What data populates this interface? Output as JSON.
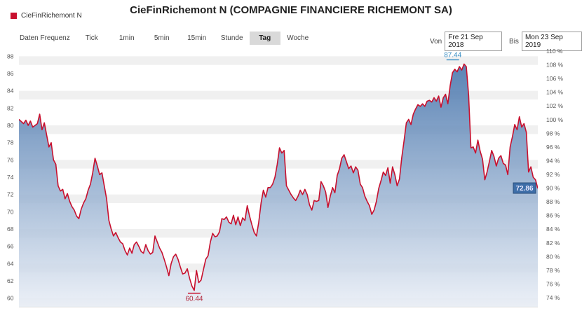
{
  "title": "CieFinRichemont N (COMPAGNIE FINANCIERE RICHEMONT SA)",
  "legend_label": "CieFinRichemont N",
  "toolbar": {
    "label": "Daten Frequenz",
    "tabs": [
      "Tick",
      "1min",
      "5min",
      "15min",
      "Stunde",
      "Tag",
      "Woche"
    ],
    "active": "Tag"
  },
  "range": {
    "from_label": "Von",
    "from_value": "Fre 21 Sep 2018",
    "to_label": "Bis",
    "to_value": "Mon 23 Sep 2019"
  },
  "colors": {
    "line": "#c8102e",
    "fill_top": "#3e6ea8",
    "fill_bottom": "#e9eef6",
    "band": "#f0f0f0"
  },
  "chart_data": {
    "type": "area",
    "ylim": [
      59,
      89
    ],
    "y_ticks": [
      60,
      62,
      64,
      66,
      68,
      70,
      72,
      74,
      76,
      78,
      80,
      82,
      84,
      86,
      88
    ],
    "y2_ticks": [
      "74 %",
      "76 %",
      "78 %",
      "80 %",
      "82 %",
      "84 %",
      "86 %",
      "88 %",
      "90 %",
      "92 %",
      "94 %",
      "96 %",
      "98 %",
      "100 %",
      "102 %",
      "104 %",
      "106 %",
      "108 %",
      "110 %"
    ],
    "x_unit": "trading day index",
    "points": [
      [
        0,
        80.7
      ],
      [
        2,
        80.2
      ],
      [
        3,
        80.6
      ],
      [
        4,
        80
      ],
      [
        5,
        80.5
      ],
      [
        6,
        79.8
      ],
      [
        8,
        80.2
      ],
      [
        9,
        81.3
      ],
      [
        10,
        79.5
      ],
      [
        11,
        80.3
      ],
      [
        13,
        77.5
      ],
      [
        14,
        78
      ],
      [
        15,
        76
      ],
      [
        16,
        75.5
      ],
      [
        17,
        73
      ],
      [
        18,
        72.4
      ],
      [
        19,
        72.6
      ],
      [
        20,
        71.5
      ],
      [
        21,
        72.1
      ],
      [
        22,
        71.2
      ],
      [
        23,
        70.6
      ],
      [
        24,
        70.2
      ],
      [
        25,
        69.5
      ],
      [
        26,
        69.2
      ],
      [
        27,
        70.3
      ],
      [
        28,
        71
      ],
      [
        29,
        71.5
      ],
      [
        30,
        72.5
      ],
      [
        31,
        73.2
      ],
      [
        32,
        74.5
      ],
      [
        33,
        76.2
      ],
      [
        34,
        75.3
      ],
      [
        35,
        74.3
      ],
      [
        36,
        74.5
      ],
      [
        37,
        73
      ],
      [
        38,
        71.5
      ],
      [
        39,
        69
      ],
      [
        40,
        68
      ],
      [
        41,
        67.2
      ],
      [
        42,
        67.6
      ],
      [
        43,
        67
      ],
      [
        44,
        66.5
      ],
      [
        45,
        66.3
      ],
      [
        46,
        65.5
      ],
      [
        47,
        65
      ],
      [
        48,
        65.8
      ],
      [
        49,
        65.2
      ],
      [
        50,
        66.2
      ],
      [
        51,
        66.5
      ],
      [
        52,
        66
      ],
      [
        53,
        65.4
      ],
      [
        54,
        65.2
      ],
      [
        55,
        66.2
      ],
      [
        56,
        65.5
      ],
      [
        57,
        65.1
      ],
      [
        58,
        65.3
      ],
      [
        59,
        67.2
      ],
      [
        60,
        66.5
      ],
      [
        61,
        65.8
      ],
      [
        62,
        65.3
      ],
      [
        63,
        64.5
      ],
      [
        64,
        63.6
      ],
      [
        65,
        62.6
      ],
      [
        66,
        64
      ],
      [
        67,
        64.8
      ],
      [
        68,
        65.1
      ],
      [
        69,
        64.5
      ],
      [
        70,
        63.6
      ],
      [
        71,
        62.8
      ],
      [
        72,
        62.9
      ],
      [
        73,
        63.4
      ],
      [
        74,
        62.3
      ],
      [
        75,
        61.4
      ],
      [
        76,
        60.9
      ],
      [
        77,
        63.2
      ],
      [
        78,
        61.8
      ],
      [
        79,
        62.1
      ],
      [
        80,
        63.3
      ],
      [
        81,
        64.5
      ],
      [
        82,
        64.9
      ],
      [
        83,
        66.5
      ],
      [
        84,
        67.5
      ],
      [
        85,
        67.1
      ],
      [
        86,
        67.2
      ],
      [
        87,
        67.7
      ],
      [
        88,
        69.2
      ],
      [
        89,
        69.1
      ],
      [
        90,
        69.4
      ],
      [
        91,
        68.8
      ],
      [
        92,
        68.6
      ],
      [
        93,
        69.6
      ],
      [
        94,
        68.5
      ],
      [
        95,
        69.4
      ],
      [
        96,
        68.4
      ],
      [
        97,
        69.3
      ],
      [
        98,
        69
      ],
      [
        99,
        70.7
      ],
      [
        100,
        69.5
      ],
      [
        101,
        68.5
      ],
      [
        102,
        67.6
      ],
      [
        103,
        67.2
      ],
      [
        104,
        68.8
      ],
      [
        105,
        71
      ],
      [
        106,
        72.5
      ],
      [
        107,
        71.7
      ],
      [
        108,
        72.8
      ],
      [
        109,
        72.8
      ],
      [
        110,
        73.2
      ],
      [
        111,
        74
      ],
      [
        112,
        75.5
      ],
      [
        113,
        77.4
      ],
      [
        114,
        76.8
      ],
      [
        115,
        77.1
      ],
      [
        116,
        73
      ],
      [
        117,
        72.5
      ],
      [
        118,
        72
      ],
      [
        119,
        71.6
      ],
      [
        120,
        71.3
      ],
      [
        121,
        71.8
      ],
      [
        122,
        72.5
      ],
      [
        123,
        72
      ],
      [
        124,
        72.6
      ],
      [
        125,
        72
      ],
      [
        126,
        70.8
      ],
      [
        127,
        70.2
      ],
      [
        128,
        71.3
      ],
      [
        129,
        71.2
      ],
      [
        130,
        71.3
      ],
      [
        131,
        73.5
      ],
      [
        132,
        73
      ],
      [
        133,
        72.3
      ],
      [
        134,
        70.5
      ],
      [
        135,
        71.8
      ],
      [
        136,
        72.8
      ],
      [
        137,
        72.2
      ],
      [
        138,
        74.2
      ],
      [
        139,
        75
      ],
      [
        140,
        76.2
      ],
      [
        141,
        76.6
      ],
      [
        142,
        75.8
      ],
      [
        143,
        75
      ],
      [
        144,
        75.3
      ],
      [
        145,
        74.5
      ],
      [
        146,
        75.2
      ],
      [
        147,
        74.8
      ],
      [
        148,
        73.2
      ],
      [
        149,
        72.8
      ],
      [
        150,
        71.8
      ],
      [
        151,
        71.2
      ],
      [
        152,
        70.7
      ],
      [
        153,
        69.7
      ],
      [
        154,
        70.2
      ],
      [
        155,
        71.2
      ],
      [
        156,
        72.7
      ],
      [
        157,
        73.6
      ],
      [
        158,
        74.6
      ],
      [
        159,
        74.2
      ],
      [
        160,
        75.1
      ],
      [
        161,
        73.3
      ],
      [
        162,
        75.2
      ],
      [
        163,
        74.3
      ],
      [
        164,
        73
      ],
      [
        165,
        73.8
      ],
      [
        166,
        76.3
      ],
      [
        167,
        78.2
      ],
      [
        168,
        80.3
      ],
      [
        169,
        80.7
      ],
      [
        170,
        80.1
      ],
      [
        171,
        81.3
      ],
      [
        172,
        81.9
      ],
      [
        173,
        82.4
      ],
      [
        174,
        82.2
      ],
      [
        175,
        82.5
      ],
      [
        176,
        82.2
      ],
      [
        177,
        82.8
      ],
      [
        178,
        82.9
      ],
      [
        179,
        82.7
      ],
      [
        180,
        83.2
      ],
      [
        181,
        82.8
      ],
      [
        182,
        83.4
      ],
      [
        183,
        82.1
      ],
      [
        184,
        83.2
      ],
      [
        185,
        83.6
      ],
      [
        186,
        82.5
      ],
      [
        187,
        84.6
      ],
      [
        188,
        86.1
      ],
      [
        189,
        86.5
      ],
      [
        190,
        86.2
      ],
      [
        191,
        86.8
      ],
      [
        192,
        86.4
      ],
      [
        193,
        87.1
      ],
      [
        194,
        86.8
      ],
      [
        195,
        83.5
      ],
      [
        196,
        77.4
      ],
      [
        197,
        77.5
      ],
      [
        198,
        76.8
      ],
      [
        199,
        78.3
      ],
      [
        200,
        77
      ],
      [
        201,
        76.1
      ],
      [
        202,
        73.7
      ],
      [
        203,
        74.6
      ],
      [
        204,
        75.8
      ],
      [
        205,
        77.1
      ],
      [
        206,
        76.4
      ],
      [
        207,
        75.3
      ],
      [
        208,
        76.2
      ],
      [
        209,
        76.5
      ],
      [
        210,
        75.6
      ],
      [
        211,
        75.4
      ],
      [
        212,
        74.3
      ],
      [
        213,
        77.5
      ],
      [
        214,
        78.7
      ],
      [
        215,
        80.1
      ],
      [
        216,
        79.5
      ],
      [
        217,
        81
      ],
      [
        218,
        79.8
      ],
      [
        219,
        80.2
      ],
      [
        220,
        79.2
      ],
      [
        221,
        74.6
      ],
      [
        222,
        75.2
      ],
      [
        223,
        74
      ],
      [
        224,
        73.7
      ],
      [
        225,
        72.7
      ]
    ],
    "max_label": "87.44",
    "min_label": "60.44",
    "last_label": "72.86"
  }
}
